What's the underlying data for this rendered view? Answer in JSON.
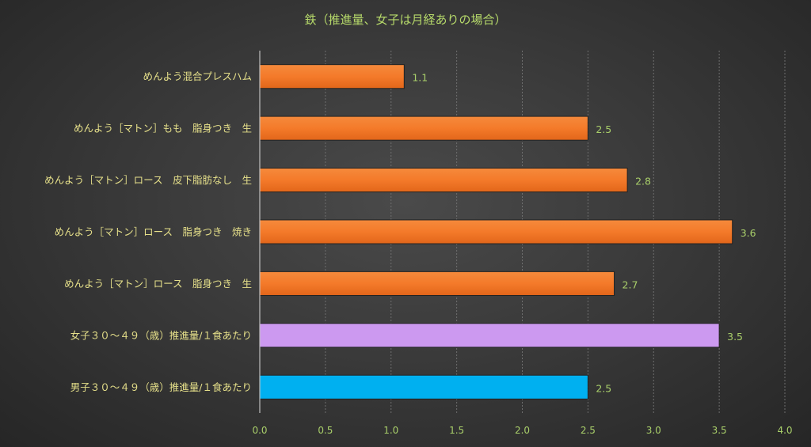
{
  "chart_data": {
    "type": "bar",
    "orientation": "horizontal",
    "title": "鉄（推進量、女子は月経ありの場合）",
    "categories": [
      "めんよう混合プレスハム",
      "めんよう［マトン］もも　脂身つき　生",
      "めんよう［マトン］ロース　皮下脂肪なし　生",
      "めんよう［マトン］ロース　脂身つき　焼き",
      "めんよう［マトン］ロース　脂身つき　生",
      "女子３０～４９（歳）推進量/１食あたり",
      "男子３０～４９（歳）推進量/１食あたり"
    ],
    "values": [
      1.1,
      2.5,
      2.8,
      3.6,
      2.7,
      3.5,
      2.5
    ],
    "data_labels": [
      "1.1",
      "2.5",
      "2.8",
      "3.6",
      "2.7",
      "3.5",
      "2.5"
    ],
    "bar_colors": [
      "#f07a2a",
      "#f07a2a",
      "#f07a2a",
      "#f07a2a",
      "#f07a2a",
      "#cc99f0",
      "#00b0f0"
    ],
    "xlim": [
      0,
      4.0
    ],
    "x_ticks": [
      "0.0",
      "0.5",
      "1.0",
      "1.5",
      "2.0",
      "2.5",
      "3.0",
      "3.5",
      "4.0"
    ],
    "grid": true,
    "legend": "none"
  }
}
